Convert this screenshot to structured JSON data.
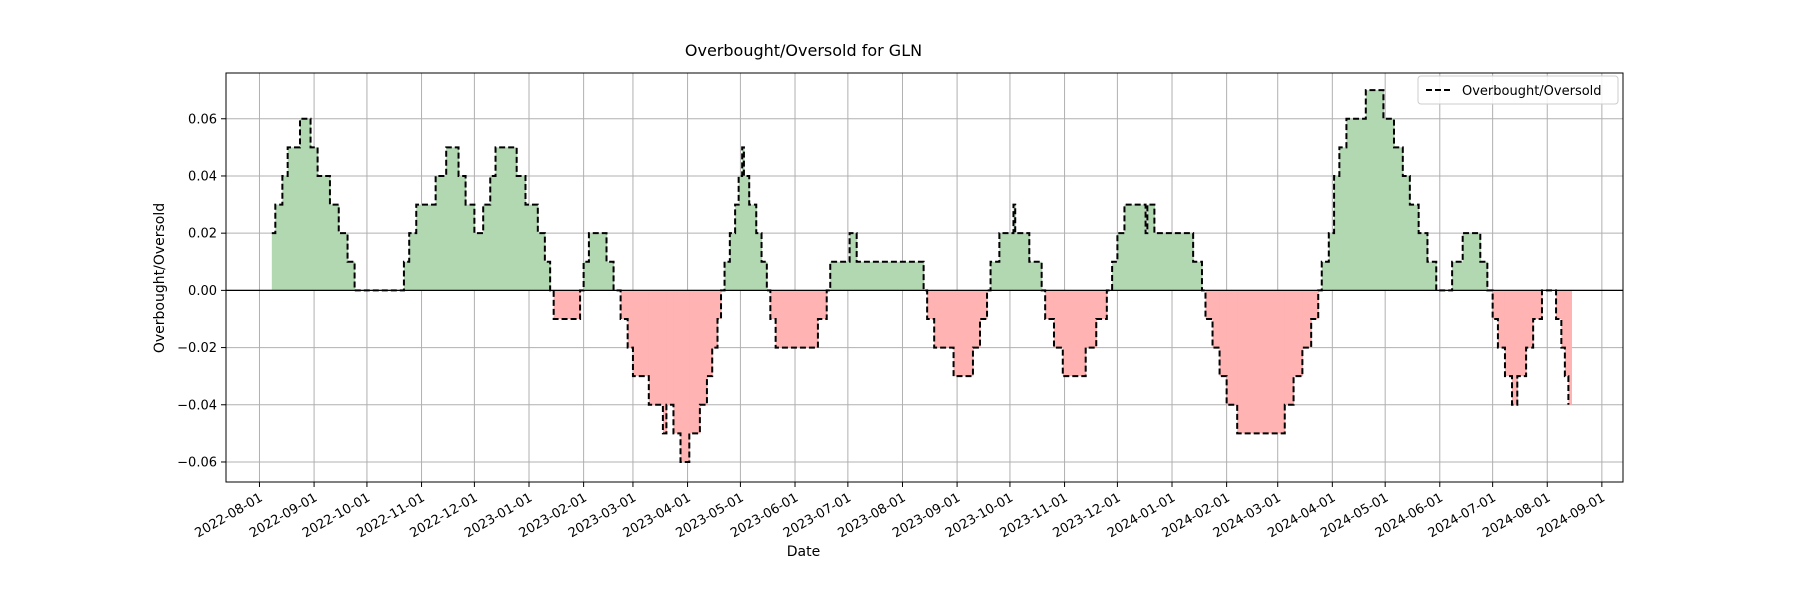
{
  "chart_data": {
    "type": "area",
    "title": "Overbought/Oversold for GLN",
    "xlabel": "Date",
    "ylabel": "Overbought/Oversold",
    "xlim": [
      "2022-07-13",
      "2024-09-13"
    ],
    "ylim": [
      -0.067,
      0.076
    ],
    "grid": true,
    "legend": {
      "position": "top-right",
      "entries": [
        "Overbought/Oversold"
      ]
    },
    "colors": {
      "positive_fill": "#b2d8b2",
      "negative_fill": "#ffb3b3",
      "line": "#000000",
      "zero_line": "#000000",
      "grid": "#b0b0b0"
    },
    "x_ticks": [
      "2022-08-01",
      "2022-09-01",
      "2022-10-01",
      "2022-11-01",
      "2022-12-01",
      "2023-01-01",
      "2023-02-01",
      "2023-03-01",
      "2023-04-01",
      "2023-05-01",
      "2023-06-01",
      "2023-07-01",
      "2023-08-01",
      "2023-09-01",
      "2023-10-01",
      "2023-11-01",
      "2023-12-01",
      "2024-01-01",
      "2024-02-01",
      "2024-03-01",
      "2024-04-01",
      "2024-05-01",
      "2024-06-01",
      "2024-07-01",
      "2024-08-01",
      "2024-09-01"
    ],
    "y_ticks": [
      -0.06,
      -0.04,
      -0.02,
      0.0,
      0.02,
      0.04,
      0.06
    ],
    "y_tick_labels": [
      "−0.06",
      "−0.04",
      "−0.02",
      "0.00",
      "0.02",
      "0.04",
      "0.06"
    ],
    "series": [
      {
        "name": "Overbought/Oversold",
        "style": "dashed-step",
        "points": [
          [
            "2022-08-08",
            0.02
          ],
          [
            "2022-08-10",
            0.03
          ],
          [
            "2022-08-14",
            0.04
          ],
          [
            "2022-08-17",
            0.05
          ],
          [
            "2022-08-24",
            0.06
          ],
          [
            "2022-08-30",
            0.05
          ],
          [
            "2022-09-03",
            0.04
          ],
          [
            "2022-09-10",
            0.03
          ],
          [
            "2022-09-15",
            0.02
          ],
          [
            "2022-09-20",
            0.01
          ],
          [
            "2022-09-24",
            0.0
          ],
          [
            "2022-10-20",
            0.0
          ],
          [
            "2022-10-22",
            0.01
          ],
          [
            "2022-10-25",
            0.02
          ],
          [
            "2022-10-29",
            0.03
          ],
          [
            "2022-11-09",
            0.04
          ],
          [
            "2022-11-15",
            0.05
          ],
          [
            "2022-11-22",
            0.04
          ],
          [
            "2022-11-26",
            0.03
          ],
          [
            "2022-12-01",
            0.02
          ],
          [
            "2022-12-06",
            0.03
          ],
          [
            "2022-12-10",
            0.04
          ],
          [
            "2022-12-13",
            0.05
          ],
          [
            "2022-12-25",
            0.04
          ],
          [
            "2022-12-30",
            0.03
          ],
          [
            "2023-01-06",
            0.02
          ],
          [
            "2023-01-10",
            0.01
          ],
          [
            "2023-01-13",
            0.0
          ],
          [
            "2023-01-15",
            -0.01
          ],
          [
            "2023-01-30",
            0.0
          ],
          [
            "2023-02-01",
            0.01
          ],
          [
            "2023-02-04",
            0.02
          ],
          [
            "2023-02-14",
            0.01
          ],
          [
            "2023-02-18",
            0.0
          ],
          [
            "2023-02-22",
            -0.01
          ],
          [
            "2023-02-26",
            -0.02
          ],
          [
            "2023-03-01",
            -0.03
          ],
          [
            "2023-03-10",
            -0.04
          ],
          [
            "2023-03-18",
            -0.05
          ],
          [
            "2023-03-20",
            -0.04
          ],
          [
            "2023-03-24",
            -0.05
          ],
          [
            "2023-03-28",
            -0.06
          ],
          [
            "2023-04-02",
            -0.05
          ],
          [
            "2023-04-08",
            -0.04
          ],
          [
            "2023-04-12",
            -0.03
          ],
          [
            "2023-04-15",
            -0.02
          ],
          [
            "2023-04-18",
            -0.01
          ],
          [
            "2023-04-20",
            0.0
          ],
          [
            "2023-04-22",
            0.01
          ],
          [
            "2023-04-25",
            0.02
          ],
          [
            "2023-04-28",
            0.03
          ],
          [
            "2023-04-30",
            0.04
          ],
          [
            "2023-05-02",
            0.05
          ],
          [
            "2023-05-03",
            0.04
          ],
          [
            "2023-05-06",
            0.03
          ],
          [
            "2023-05-10",
            0.02
          ],
          [
            "2023-05-13",
            0.01
          ],
          [
            "2023-05-16",
            0.0
          ],
          [
            "2023-05-18",
            -0.01
          ],
          [
            "2023-05-21",
            -0.02
          ],
          [
            "2023-06-14",
            -0.01
          ],
          [
            "2023-06-19",
            0.0
          ],
          [
            "2023-06-21",
            0.01
          ],
          [
            "2023-07-02",
            0.02
          ],
          [
            "2023-07-06",
            0.01
          ],
          [
            "2023-08-13",
            0.0
          ],
          [
            "2023-08-15",
            -0.01
          ],
          [
            "2023-08-19",
            -0.02
          ],
          [
            "2023-08-30",
            -0.03
          ],
          [
            "2023-09-10",
            -0.02
          ],
          [
            "2023-09-14",
            -0.01
          ],
          [
            "2023-09-18",
            0.0
          ],
          [
            "2023-09-20",
            0.01
          ],
          [
            "2023-09-25",
            0.02
          ],
          [
            "2023-10-03",
            0.03
          ],
          [
            "2023-10-04",
            0.02
          ],
          [
            "2023-10-12",
            0.01
          ],
          [
            "2023-10-19",
            0.0
          ],
          [
            "2023-10-21",
            -0.01
          ],
          [
            "2023-10-26",
            -0.02
          ],
          [
            "2023-10-31",
            -0.03
          ],
          [
            "2023-11-13",
            -0.02
          ],
          [
            "2023-11-19",
            -0.01
          ],
          [
            "2023-11-25",
            0.0
          ],
          [
            "2023-11-28",
            0.01
          ],
          [
            "2023-12-01",
            0.02
          ],
          [
            "2023-12-05",
            0.03
          ],
          [
            "2023-12-17",
            0.02
          ],
          [
            "2023-12-18",
            0.03
          ],
          [
            "2023-12-22",
            0.02
          ],
          [
            "2024-01-13",
            0.01
          ],
          [
            "2024-01-18",
            0.0
          ],
          [
            "2024-01-20",
            -0.01
          ],
          [
            "2024-01-24",
            -0.02
          ],
          [
            "2024-01-28",
            -0.03
          ],
          [
            "2024-02-01",
            -0.04
          ],
          [
            "2024-02-07",
            -0.05
          ],
          [
            "2024-03-05",
            -0.04
          ],
          [
            "2024-03-10",
            -0.03
          ],
          [
            "2024-03-15",
            -0.02
          ],
          [
            "2024-03-20",
            -0.01
          ],
          [
            "2024-03-24",
            0.0
          ],
          [
            "2024-03-26",
            0.01
          ],
          [
            "2024-03-30",
            0.02
          ],
          [
            "2024-04-02",
            0.04
          ],
          [
            "2024-04-05",
            0.05
          ],
          [
            "2024-04-09",
            0.06
          ],
          [
            "2024-04-20",
            0.07
          ],
          [
            "2024-04-30",
            0.06
          ],
          [
            "2024-05-06",
            0.05
          ],
          [
            "2024-05-11",
            0.04
          ],
          [
            "2024-05-15",
            0.03
          ],
          [
            "2024-05-20",
            0.02
          ],
          [
            "2024-05-25",
            0.01
          ],
          [
            "2024-05-30",
            0.0
          ],
          [
            "2024-06-08",
            0.01
          ],
          [
            "2024-06-14",
            0.02
          ],
          [
            "2024-06-24",
            0.01
          ],
          [
            "2024-06-28",
            0.0
          ],
          [
            "2024-07-01",
            -0.01
          ],
          [
            "2024-07-04",
            -0.02
          ],
          [
            "2024-07-08",
            -0.03
          ],
          [
            "2024-07-12",
            -0.04
          ],
          [
            "2024-07-15",
            -0.03
          ],
          [
            "2024-07-20",
            -0.02
          ],
          [
            "2024-07-24",
            -0.01
          ],
          [
            "2024-07-29",
            0.0
          ],
          [
            "2024-08-06",
            -0.01
          ],
          [
            "2024-08-09",
            -0.02
          ],
          [
            "2024-08-11",
            -0.03
          ],
          [
            "2024-08-13",
            -0.04
          ]
        ]
      }
    ]
  }
}
